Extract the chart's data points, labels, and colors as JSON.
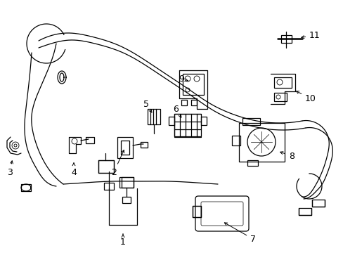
{
  "background_color": "#ffffff",
  "line_color": "#000000",
  "fig_width": 4.89,
  "fig_height": 3.6,
  "dpi": 100,
  "label_fontsize": 9,
  "lw": 0.9
}
